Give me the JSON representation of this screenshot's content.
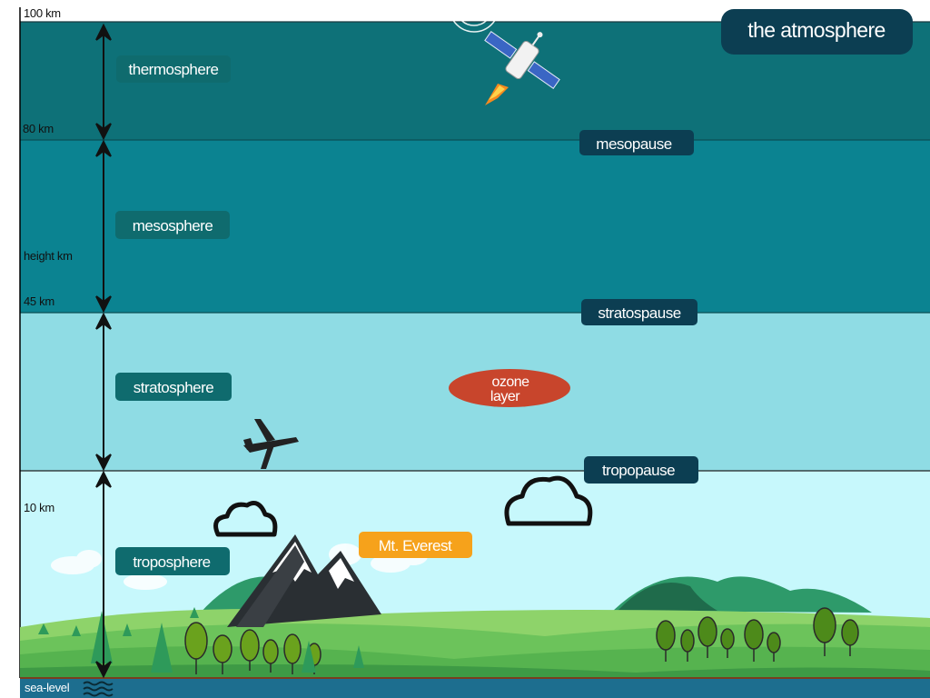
{
  "title": "the atmosphere",
  "altitudes": {
    "top": "100 km",
    "thermo_meso": "80 km",
    "axis_label": "height km",
    "meso_strato": "45 km",
    "tropo": "10 km",
    "sea_level": "sea-level"
  },
  "layers": {
    "thermosphere": "thermosphere",
    "mesosphere": "mesosphere",
    "stratosphere": "stratosphere",
    "troposphere": "troposphere"
  },
  "boundaries": {
    "mesopause": "mesopause",
    "stratospause": "stratospause",
    "tropopause": "tropopause"
  },
  "features": {
    "ozone_line1": "ozone",
    "ozone_line2": "layer",
    "everest": "Mt. Everest"
  },
  "icons": [
    "satellite-icon",
    "airplane-icon",
    "cloud-icon",
    "mountain-icon",
    "tree-icon",
    "waves-icon"
  ],
  "colors": {
    "thermosphere": "#0e7178",
    "mesosphere": "#0b8391",
    "stratosphere": "#8fdce4",
    "troposphere": "#c7f8fc",
    "label_dark": "#0c3e52",
    "label_teal": "#0f6b6e",
    "ozone": "#c8452c",
    "everest": "#f6a21b",
    "sea": "#1d6e8f"
  }
}
